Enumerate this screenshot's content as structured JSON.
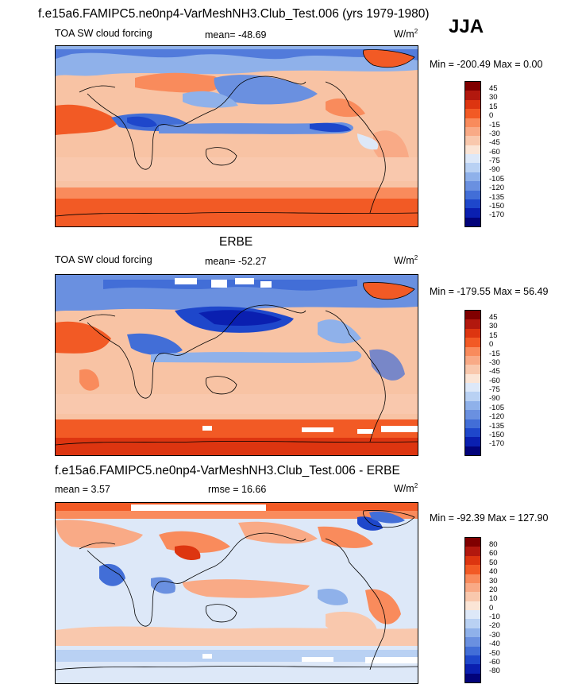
{
  "header": {
    "title": "f.e15a6.FAMIPC5.ne0np4-VarMeshNH3.Club_Test.006 (yrs 1979-1980)",
    "season": "JJA"
  },
  "panels": [
    {
      "id": "model",
      "title": "",
      "left_label": "TOA SW cloud forcing",
      "center_label": "mean= -48.69",
      "units": "W/m",
      "units_sup": "2",
      "minmax": "Min = -200.49 Max =   0.00",
      "colorbar": {
        "labels": [
          "45",
          "30",
          "15",
          "0",
          "-15",
          "-30",
          "-45",
          "-60",
          "-75",
          "-90",
          "-105",
          "-120",
          "-135",
          "-150",
          "-170"
        ],
        "colors": [
          "#800000",
          "#b2180e",
          "#dd3510",
          "#f25a25",
          "#f98b5c",
          "#f9aa86",
          "#f9c8ad",
          "#fbe5d6",
          "#dde8f8",
          "#b9d1f3",
          "#8fb1ea",
          "#6a90e0",
          "#426ed7",
          "#1e47cb",
          "#0a1fb0",
          "#02037a"
        ]
      }
    },
    {
      "id": "obs",
      "title": "ERBE",
      "left_label": "TOA SW cloud forcing",
      "center_label": "mean= -52.27",
      "units": "W/m",
      "units_sup": "2",
      "minmax": "Min = -179.55 Max =  56.49",
      "colorbar": {
        "labels": [
          "45",
          "30",
          "15",
          "0",
          "-15",
          "-30",
          "-45",
          "-60",
          "-75",
          "-90",
          "-105",
          "-120",
          "-135",
          "-150",
          "-170"
        ],
        "colors": [
          "#800000",
          "#b2180e",
          "#dd3510",
          "#f25a25",
          "#f98b5c",
          "#f9aa86",
          "#f9c8ad",
          "#fbe5d6",
          "#dde8f8",
          "#b9d1f3",
          "#8fb1ea",
          "#6a90e0",
          "#426ed7",
          "#1e47cb",
          "#0a1fb0",
          "#02037a"
        ]
      }
    },
    {
      "id": "diff",
      "title": "f.e15a6.FAMIPC5.ne0np4-VarMeshNH3.Club_Test.006 - ERBE",
      "left_label": "mean =   3.57",
      "center_label": "rmse =  16.66",
      "units": "W/m",
      "units_sup": "2",
      "minmax": "Min = -92.39 Max = 127.90",
      "colorbar": {
        "labels": [
          "80",
          "60",
          "50",
          "40",
          "30",
          "20",
          "10",
          "0",
          "-10",
          "-20",
          "-30",
          "-40",
          "-50",
          "-60",
          "-80"
        ],
        "colors": [
          "#800000",
          "#b2180e",
          "#dd3510",
          "#f25a25",
          "#f98b5c",
          "#f9aa86",
          "#f9c8ad",
          "#fbe5d6",
          "#dde8f8",
          "#b9d1f3",
          "#8fb1ea",
          "#6a90e0",
          "#426ed7",
          "#1e47cb",
          "#0a1fb0",
          "#02037a"
        ]
      }
    }
  ]
}
